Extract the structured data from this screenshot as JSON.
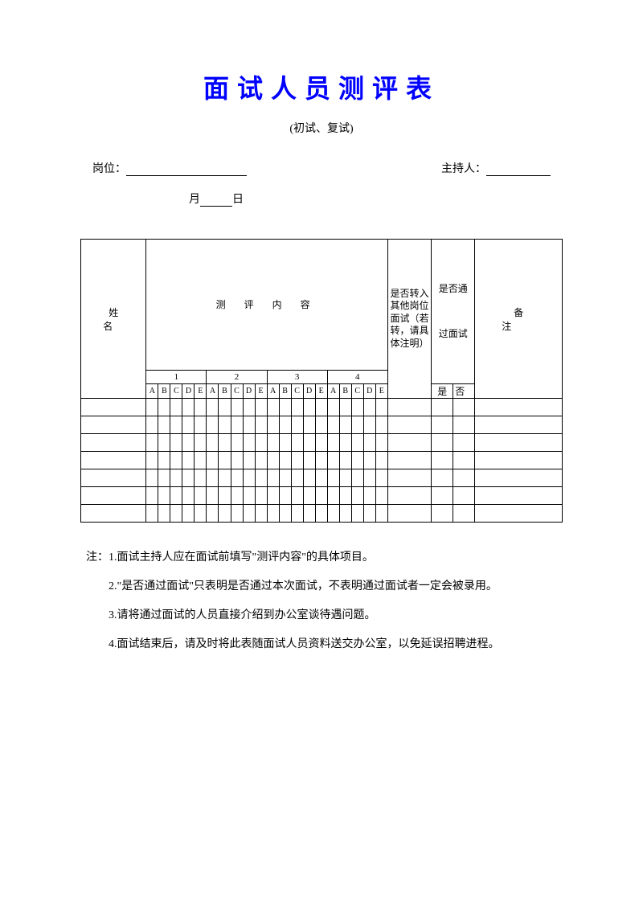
{
  "title": "面试人员测评表",
  "subtitle": "(初试、复试)",
  "labels": {
    "position": "岗位：",
    "host": "主持人：",
    "month": "月",
    "day": "日"
  },
  "table": {
    "headers": {
      "name": "姓 名",
      "eval": "测 评 内 容",
      "transfer": "是否转入其他岗位面试（若转，请具体注明）",
      "pass_top": "是否通",
      "pass_bottom": "过面试",
      "yes": "是",
      "no": "否",
      "remark": "备注"
    },
    "groups": [
      "1",
      "2",
      "3",
      "4"
    ],
    "letters": [
      "A",
      "B",
      "C",
      "D",
      "E"
    ],
    "data_rows": 7
  },
  "notes": {
    "prefix": "注：",
    "items": [
      "1.面试主持人应在面试前填写\"测评内容\"的具体项目。",
      "2.\"是否通过面试\"只表明是否通过本次面试，不表明通过面试者一定会被录用。",
      "3.请将通过面试的人员直接介绍到办公室谈待遇问题。",
      "4.面试结束后，请及时将此表随面试人员资料送交办公室，以免延误招聘进程。"
    ]
  },
  "colors": {
    "title": "#0000ff",
    "text": "#000000",
    "background": "#ffffff",
    "border": "#000000"
  }
}
